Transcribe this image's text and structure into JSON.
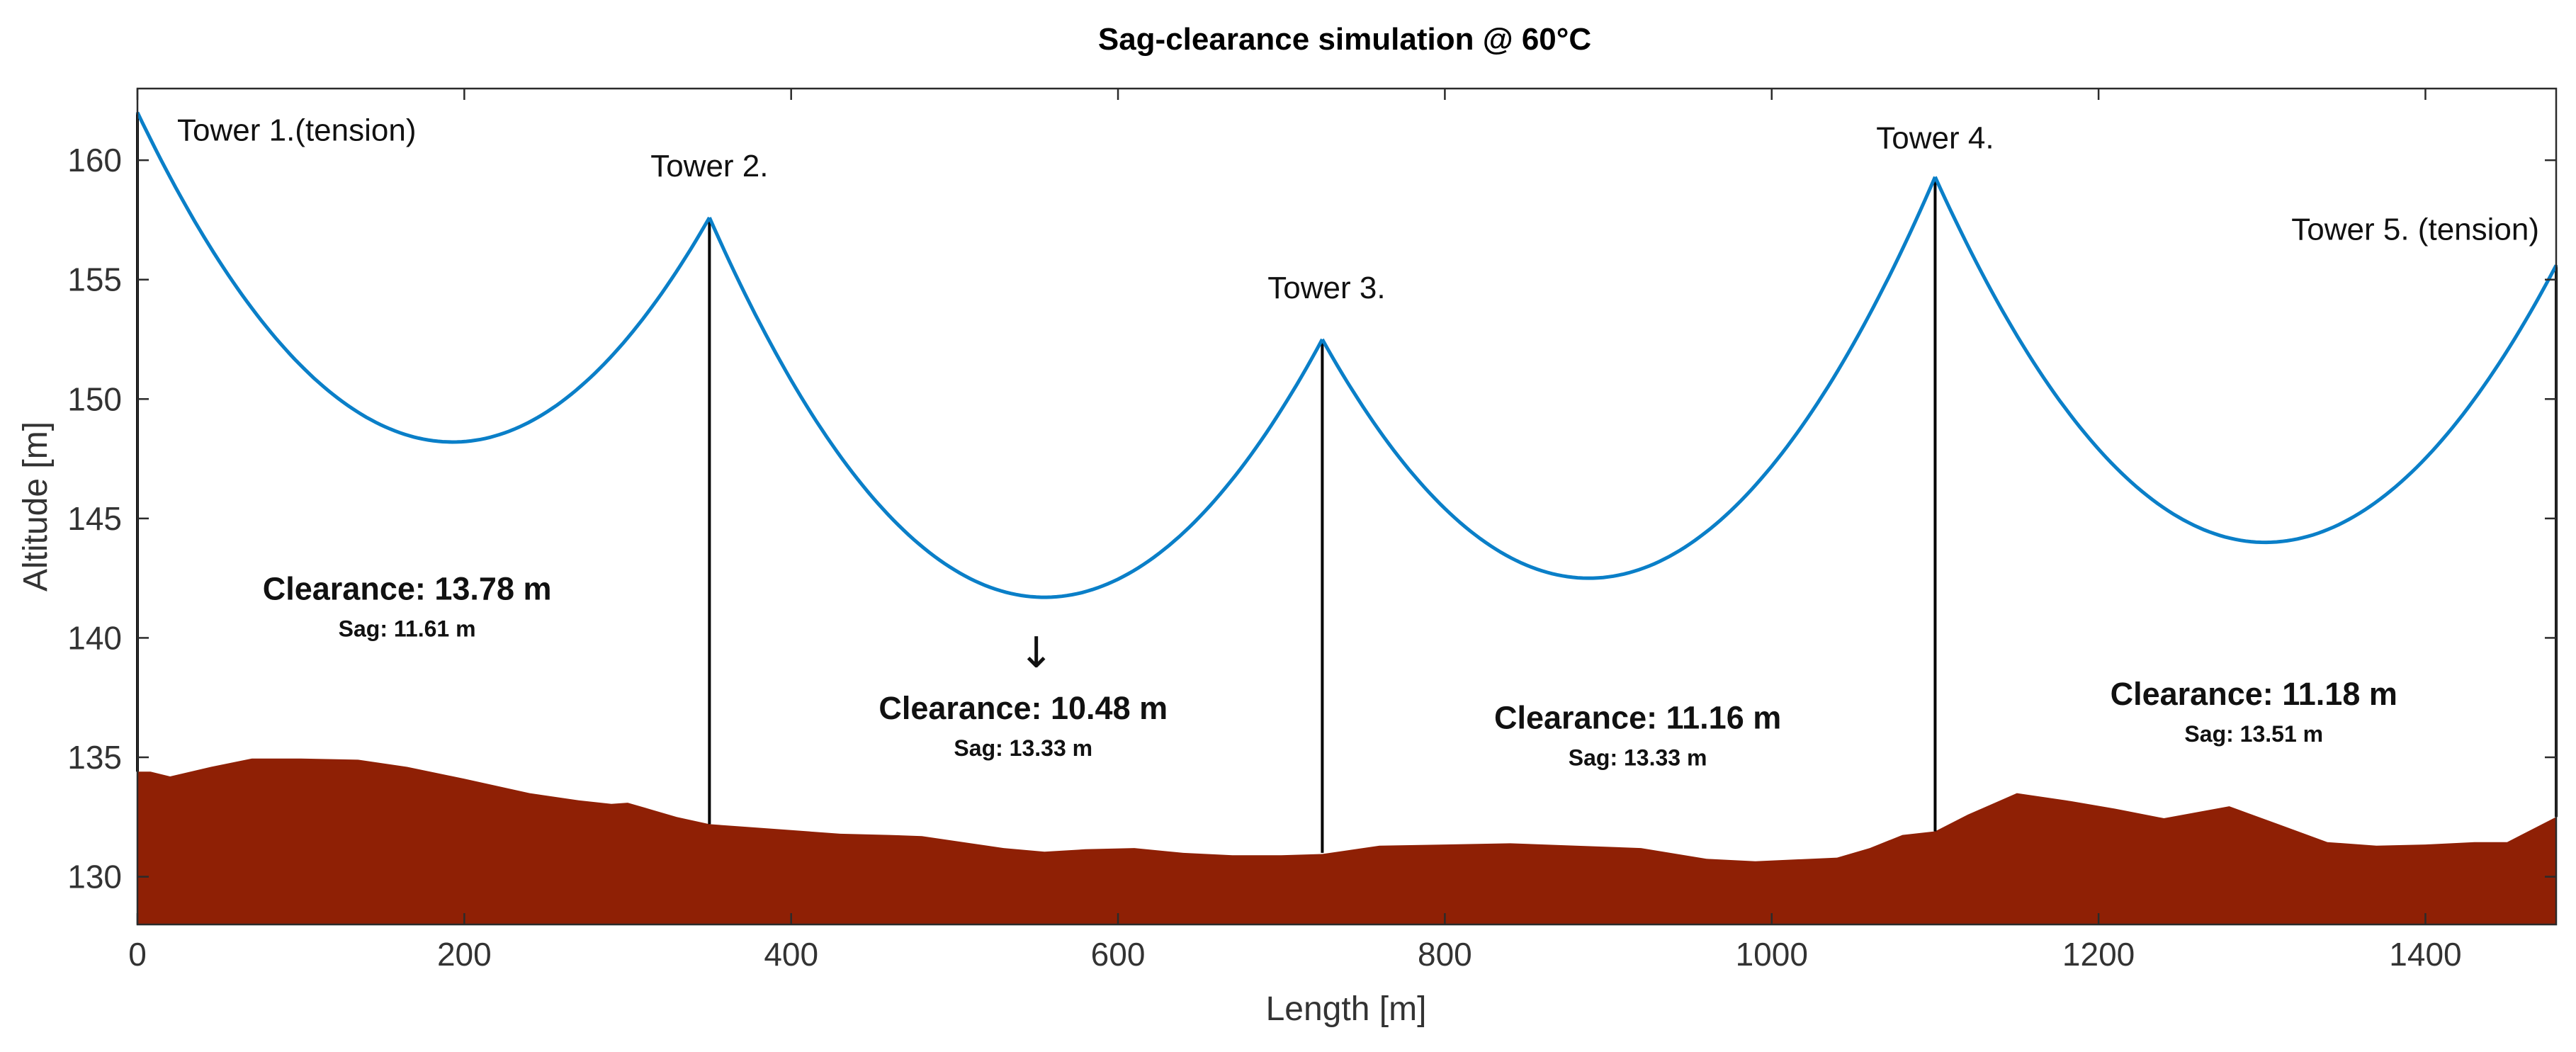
{
  "chart_data": {
    "type": "line",
    "title": "Sag-clearance simulation @ 60°C",
    "xlabel": "Length [m]",
    "ylabel": "Altitude [m]",
    "xlim": [
      0,
      1480
    ],
    "ylim": [
      128,
      163
    ],
    "xticks": [
      0,
      200,
      400,
      600,
      800,
      1000,
      1200,
      1400
    ],
    "yticks": [
      130,
      135,
      140,
      145,
      150,
      155,
      160
    ],
    "grid": false,
    "colors": {
      "conductor": "#0a7fc8",
      "terrain": "#8f2005",
      "tower": "#000000"
    },
    "towers": [
      {
        "name": "Tower 1.(tension)",
        "x": 0,
        "top": 162.0,
        "base": 134.4
      },
      {
        "name": "Tower 2.",
        "x": 350,
        "top": 157.6,
        "base": 132.2
      },
      {
        "name": "Tower 3.",
        "x": 725,
        "top": 152.5,
        "base": 131.0
      },
      {
        "name": "Tower 4.",
        "x": 1100,
        "top": 159.3,
        "base": 131.9
      },
      {
        "name": "Tower 5. (tension)",
        "x": 1480,
        "top": 155.6,
        "base": 132.5
      }
    ],
    "spans": [
      {
        "from": 0,
        "to": 350,
        "lowest_x": 193,
        "lowest_y": 148.2
      },
      {
        "from": 350,
        "to": 725,
        "lowest_x": 555,
        "lowest_y": 141.7
      },
      {
        "from": 725,
        "to": 1100,
        "lowest_x": 888,
        "lowest_y": 142.5
      },
      {
        "from": 1100,
        "to": 1480,
        "lowest_x": 1302,
        "lowest_y": 144.0
      }
    ],
    "annotations": [
      {
        "clearance": "Clearance: 13.78 m",
        "sag": "Sag: 11.61 m",
        "x": 165,
        "y": 141.6
      },
      {
        "clearance": "Clearance: 10.48 m",
        "sag": "Sag: 13.33 m",
        "x": 542,
        "y": 136.6
      },
      {
        "clearance": "Clearance: 11.16 m",
        "sag": "Sag: 13.33 m",
        "x": 918,
        "y": 136.2
      },
      {
        "clearance": "Clearance: 11.18 m",
        "sag": "Sag: 13.51 m",
        "x": 1295,
        "y": 137.2
      }
    ],
    "arrow": {
      "symbol": "↓",
      "x": 550,
      "y": 139.3
    },
    "terrain": {
      "x": [
        0,
        8,
        20,
        45,
        70,
        100,
        135,
        165,
        200,
        240,
        270,
        290,
        300,
        310,
        330,
        350,
        370,
        400,
        430,
        460,
        480,
        510,
        530,
        555,
        580,
        610,
        640,
        670,
        700,
        725,
        760,
        800,
        840,
        880,
        920,
        960,
        990,
        1040,
        1060,
        1080,
        1100,
        1120,
        1150,
        1180,
        1210,
        1240,
        1280,
        1310,
        1340,
        1370,
        1400,
        1430,
        1450,
        1480
      ],
      "y": [
        134.4,
        134.4,
        134.2,
        134.6,
        134.95,
        134.95,
        134.9,
        134.6,
        134.1,
        133.5,
        133.2,
        133.05,
        133.1,
        132.9,
        132.5,
        132.2,
        132.1,
        131.95,
        131.8,
        131.75,
        131.7,
        131.4,
        131.2,
        131.05,
        131.15,
        131.2,
        131.0,
        130.9,
        130.9,
        130.95,
        131.3,
        131.35,
        131.4,
        131.3,
        131.2,
        130.75,
        130.65,
        130.8,
        131.2,
        131.75,
        131.9,
        132.6,
        133.5,
        133.2,
        132.85,
        132.45,
        132.95,
        132.2,
        131.45,
        131.3,
        131.35,
        131.45,
        131.45,
        132.5
      ]
    }
  }
}
